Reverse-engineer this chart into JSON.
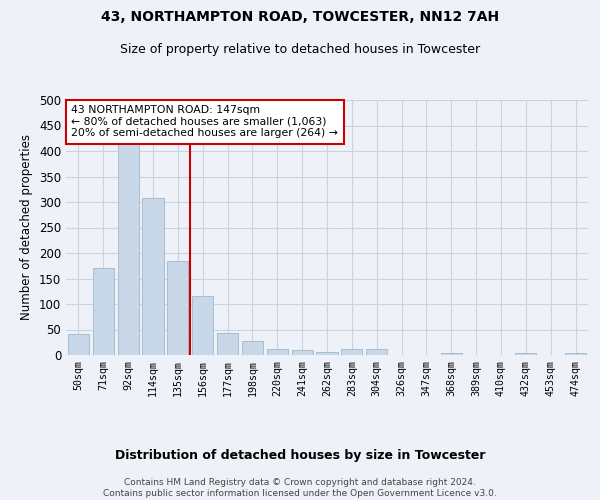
{
  "title1": "43, NORTHAMPTON ROAD, TOWCESTER, NN12 7AH",
  "title2": "Size of property relative to detached houses in Towcester",
  "xlabel": "Distribution of detached houses by size in Towcester",
  "ylabel": "Number of detached properties",
  "categories": [
    "50sqm",
    "71sqm",
    "92sqm",
    "114sqm",
    "135sqm",
    "156sqm",
    "177sqm",
    "198sqm",
    "220sqm",
    "241sqm",
    "262sqm",
    "283sqm",
    "304sqm",
    "326sqm",
    "347sqm",
    "368sqm",
    "389sqm",
    "410sqm",
    "432sqm",
    "453sqm",
    "474sqm"
  ],
  "values": [
    42,
    170,
    415,
    308,
    184,
    115,
    44,
    28,
    11,
    9,
    6,
    11,
    11,
    0,
    0,
    4,
    0,
    0,
    4,
    0,
    4
  ],
  "bar_color": "#c8d8e8",
  "bar_edge_color": "#a8bece",
  "grid_color": "#c8d4e4",
  "background_color": "#eef2f8",
  "vline_x_idx": 4.5,
  "vline_color": "#cc0000",
  "annotation_text": "43 NORTHAMPTON ROAD: 147sqm\n← 80% of detached houses are smaller (1,063)\n20% of semi-detached houses are larger (264) →",
  "annotation_box_color": "#ffffff",
  "annotation_box_edge": "#cc0000",
  "footer1": "Contains HM Land Registry data © Crown copyright and database right 2024.",
  "footer2": "Contains public sector information licensed under the Open Government Licence v3.0.",
  "ylim": [
    0,
    500
  ],
  "yticks": [
    0,
    50,
    100,
    150,
    200,
    250,
    300,
    350,
    400,
    450,
    500
  ]
}
